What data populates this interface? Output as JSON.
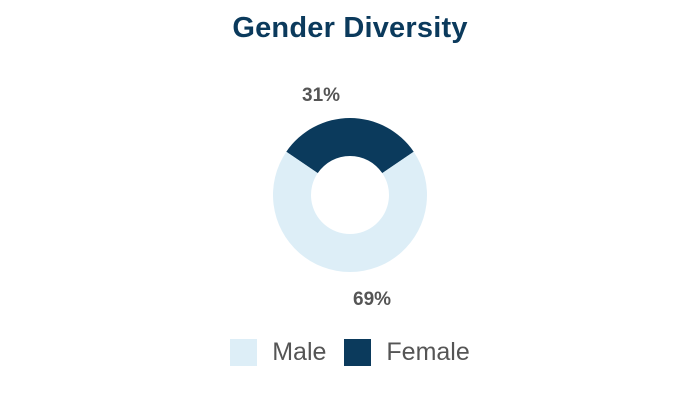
{
  "chart_data": {
    "type": "pie",
    "title": "Gender Diversity",
    "donut": true,
    "categories": [
      "Male",
      "Female"
    ],
    "values": [
      69,
      31
    ],
    "value_labels": [
      "69%",
      "31%"
    ],
    "colors": {
      "Male": "#ddeef7",
      "Female": "#0b3a5c"
    },
    "legend": {
      "placement": "bottom",
      "entries": [
        "Male",
        "Female"
      ]
    }
  }
}
